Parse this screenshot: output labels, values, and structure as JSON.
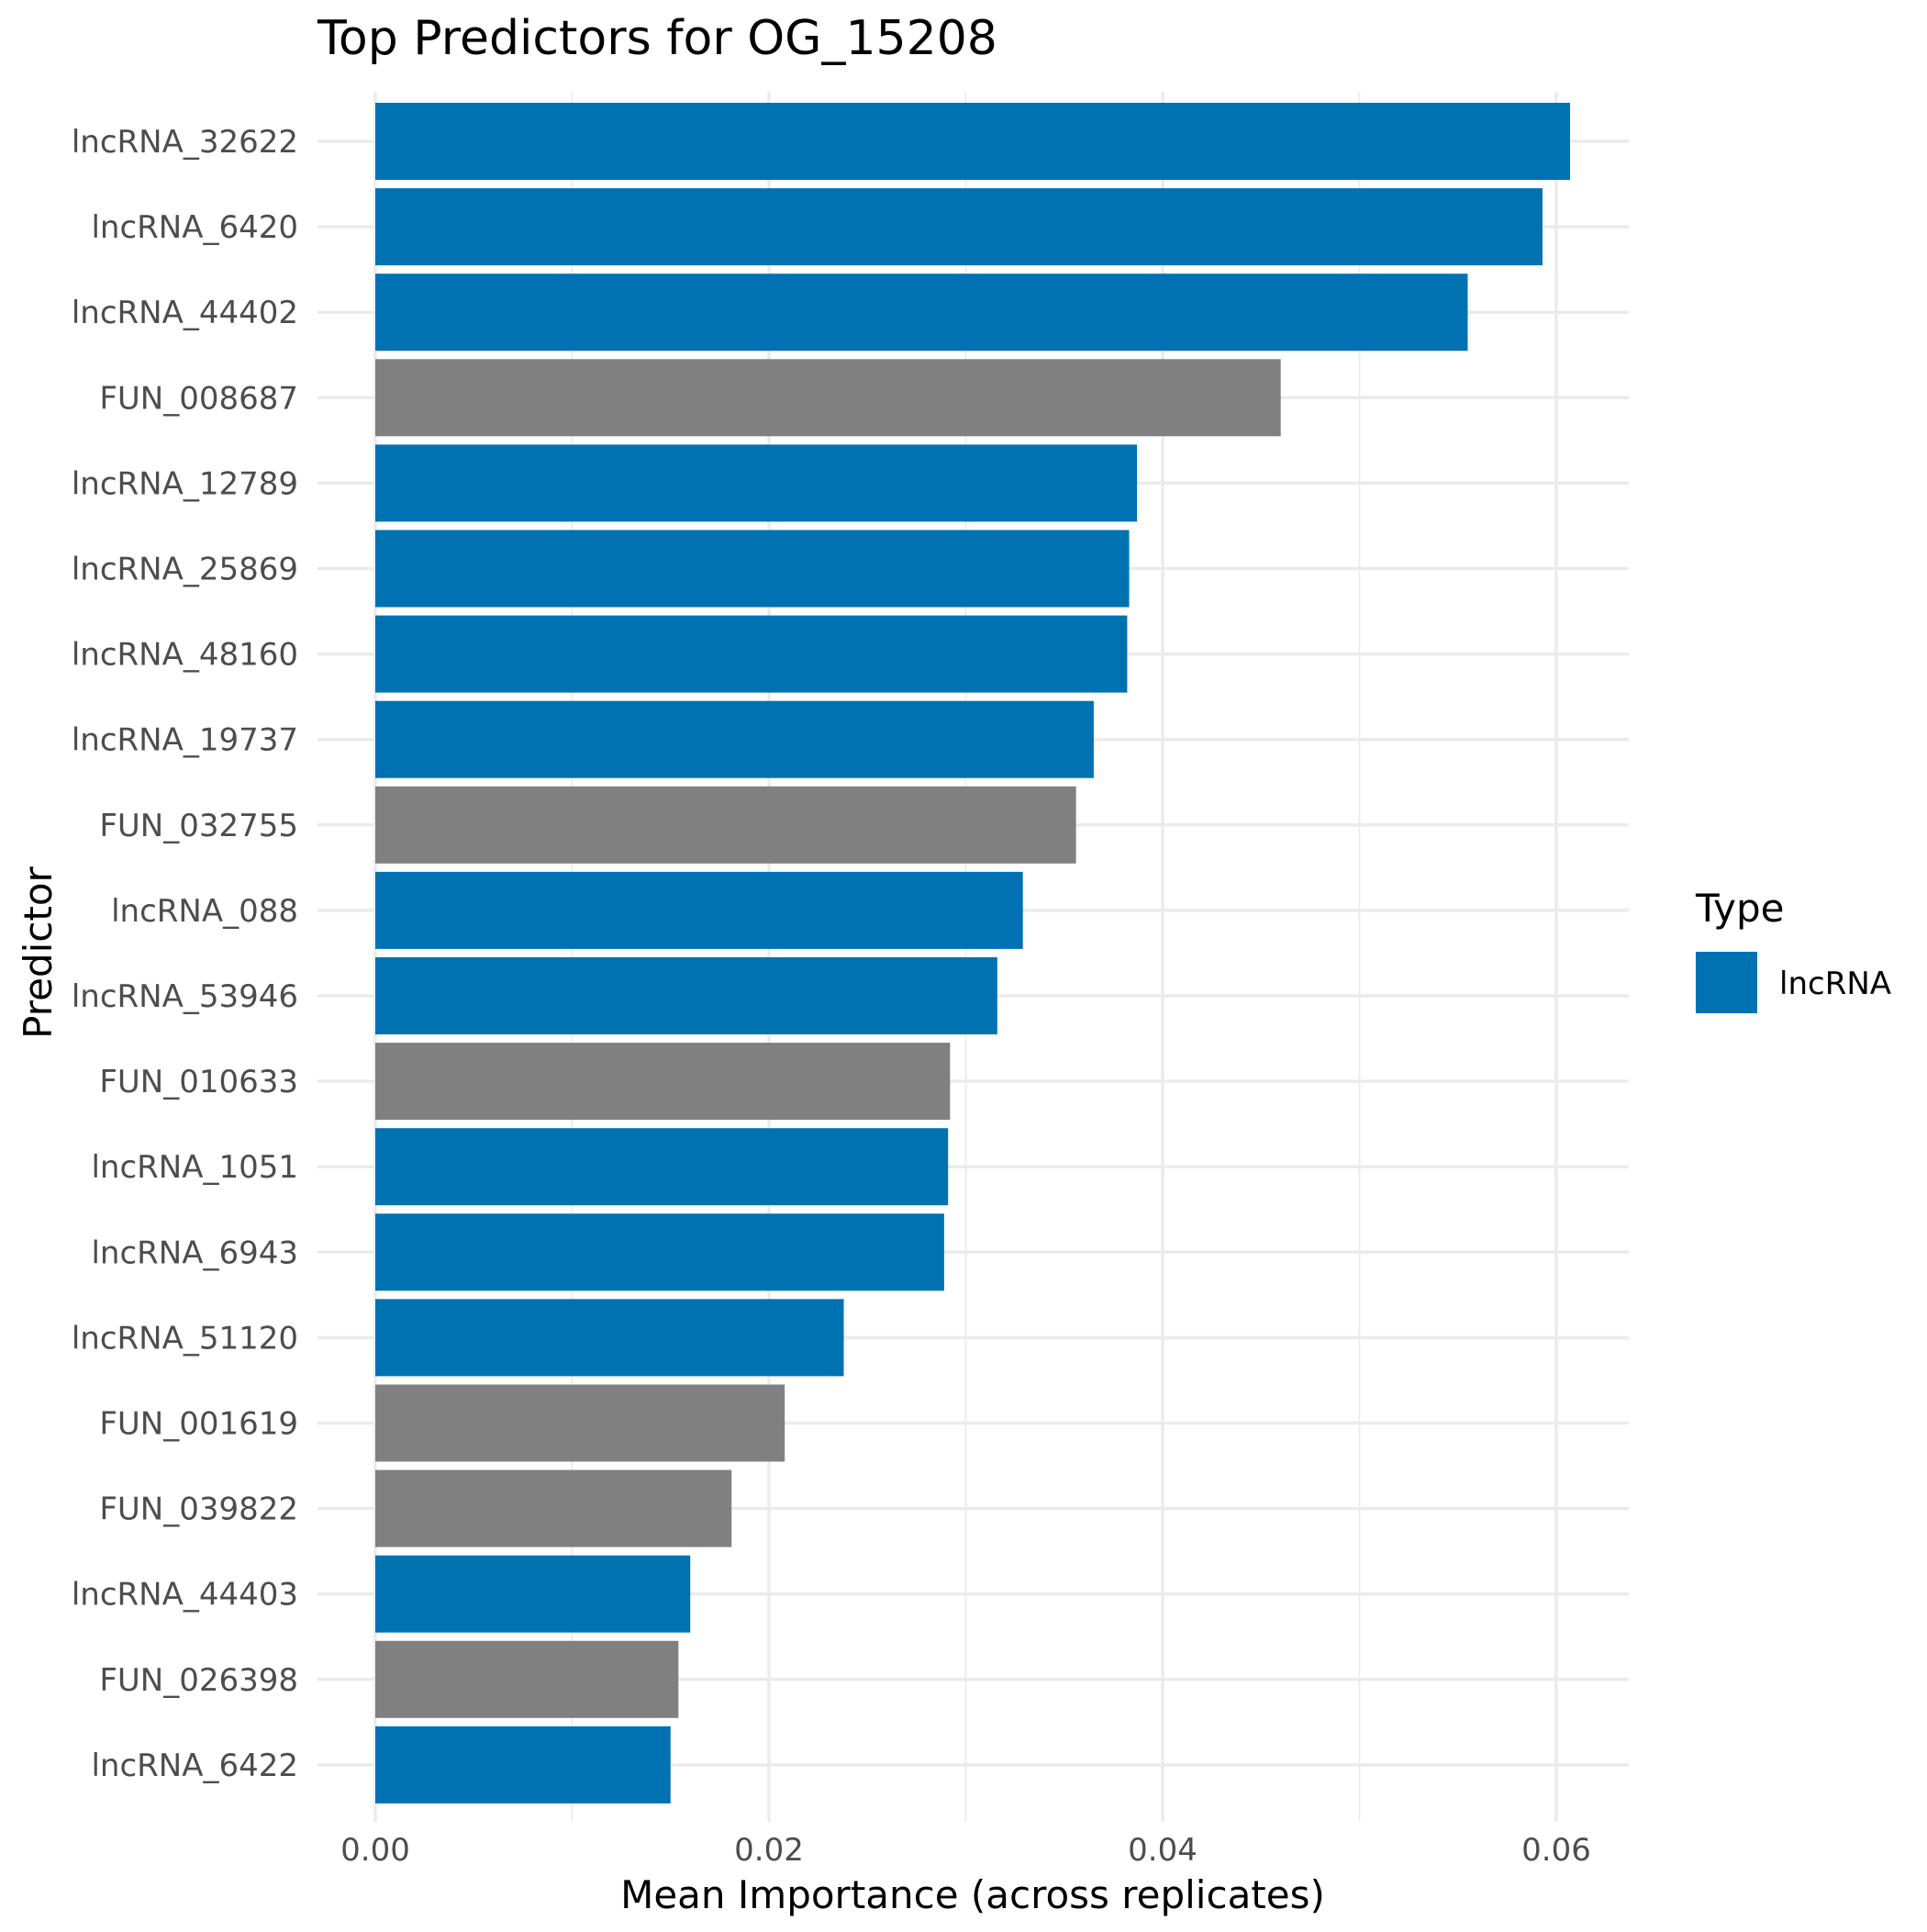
{
  "chart_data": {
    "type": "bar",
    "orientation": "horizontal",
    "title": "Top Predictors for OG_15208",
    "xlabel": "Mean Importance (across replicates)",
    "ylabel": "Predictor",
    "xlim": [
      0,
      0.0637
    ],
    "x_ticks": [
      0.0,
      0.02,
      0.04,
      0.06
    ],
    "x_tick_labels": [
      "0.00",
      "0.02",
      "0.04",
      "0.06"
    ],
    "grid": true,
    "legend": {
      "title": "Type",
      "placement": "right",
      "entries": [
        {
          "label": "lncRNA",
          "color": "#0072B2"
        }
      ]
    },
    "colors": {
      "lncRNA": "#0072B2",
      "FUN": "#808080"
    },
    "categories": [
      "lncRNA_32622",
      "lncRNA_6420",
      "lncRNA_44402",
      "FUN_008687",
      "lncRNA_12789",
      "lncRNA_25869",
      "lncRNA_48160",
      "lncRNA_19737",
      "FUN_032755",
      "lncRNA_088",
      "lncRNA_53946",
      "FUN_010633",
      "lncRNA_1051",
      "lncRNA_6943",
      "lncRNA_51120",
      "FUN_001619",
      "FUN_039822",
      "lncRNA_44403",
      "FUN_026398",
      "lncRNA_6422"
    ],
    "types": [
      "lncRNA",
      "lncRNA",
      "lncRNA",
      "FUN",
      "lncRNA",
      "lncRNA",
      "lncRNA",
      "lncRNA",
      "FUN",
      "lncRNA",
      "lncRNA",
      "FUN",
      "lncRNA",
      "lncRNA",
      "lncRNA",
      "FUN",
      "FUN",
      "lncRNA",
      "FUN",
      "lncRNA"
    ],
    "values": [
      0.0607,
      0.0593,
      0.0555,
      0.046,
      0.0387,
      0.0383,
      0.0382,
      0.0365,
      0.0356,
      0.0329,
      0.0316,
      0.0292,
      0.0291,
      0.0289,
      0.0238,
      0.0208,
      0.0181,
      0.016,
      0.0154,
      0.015
    ]
  }
}
